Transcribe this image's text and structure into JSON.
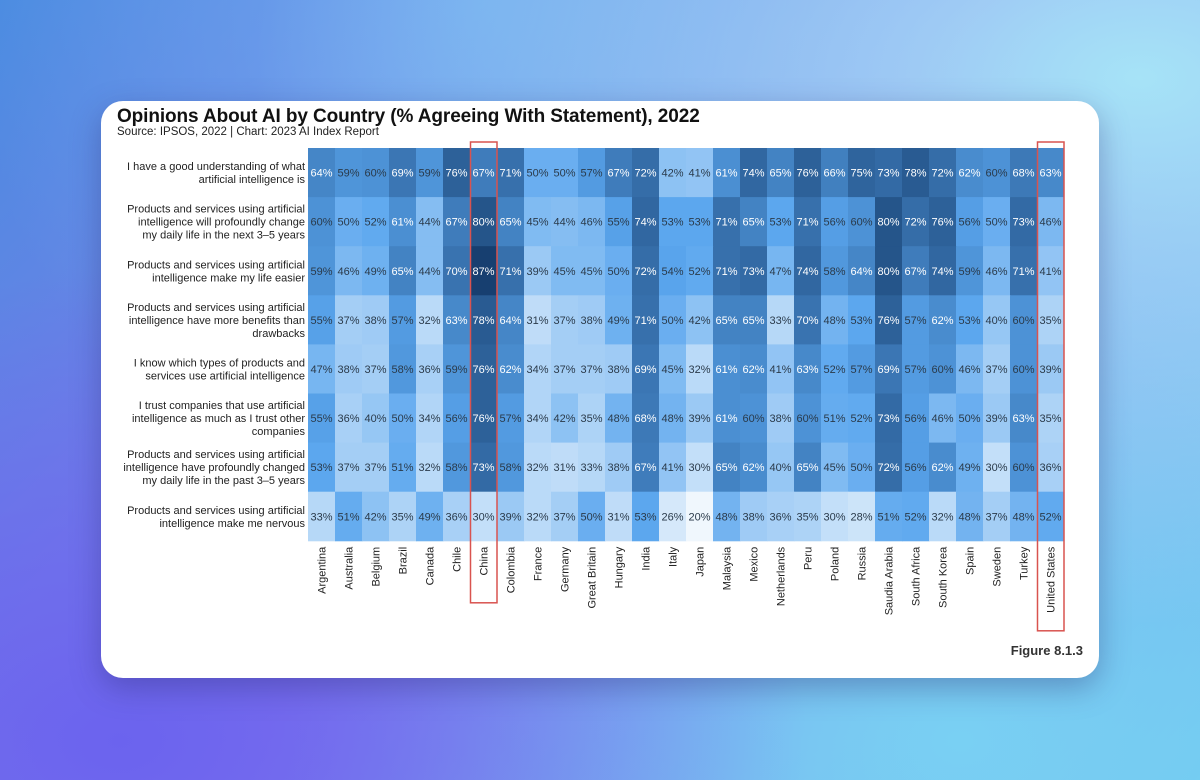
{
  "figure_label": "Figure 8.1.3",
  "highlight_color": "#d9534f",
  "highlighted_columns": [
    "China",
    "United States"
  ],
  "chart_data": {
    "type": "heatmap",
    "title": "Opinions About AI by Country (% Agreeing With Statement), 2022",
    "subtitle": "Source: IPSOS, 2022 | Chart: 2023 AI Index Report",
    "unit": "%",
    "color_scale": {
      "low": "#f0f7fd",
      "mid": "#5aa6ee",
      "high": "#173f70",
      "min": 20,
      "max": 87
    },
    "columns": [
      "Argentina",
      "Australia",
      "Belgium",
      "Brazil",
      "Canada",
      "Chile",
      "China",
      "Colombia",
      "France",
      "Germany",
      "Great Britain",
      "Hungary",
      "India",
      "Italy",
      "Japan",
      "Malaysia",
      "Mexico",
      "Netherlands",
      "Peru",
      "Poland",
      "Russia",
      "Saudia Arabia",
      "South Africa",
      "South Korea",
      "Spain",
      "Sweden",
      "Turkey",
      "United States"
    ],
    "rows": [
      {
        "label": [
          "I have a good understanding of what",
          "artificial intelligence is"
        ],
        "values": [
          64,
          59,
          60,
          69,
          59,
          76,
          67,
          71,
          50,
          50,
          57,
          67,
          72,
          42,
          41,
          61,
          74,
          65,
          76,
          66,
          75,
          73,
          78,
          72,
          62,
          60,
          68,
          63
        ]
      },
      {
        "label": [
          "Products and services using artificial",
          "intelligence will profoundly change",
          "my daily life in the next 3–5 years"
        ],
        "values": [
          60,
          50,
          52,
          61,
          44,
          67,
          80,
          65,
          45,
          44,
          46,
          55,
          74,
          53,
          53,
          71,
          65,
          53,
          71,
          56,
          60,
          80,
          72,
          76,
          56,
          50,
          73,
          46
        ]
      },
      {
        "label": [
          "Products and services using artificial",
          "intelligence make my life easier"
        ],
        "values": [
          59,
          46,
          49,
          65,
          44,
          70,
          87,
          71,
          39,
          45,
          45,
          50,
          72,
          54,
          52,
          71,
          73,
          47,
          74,
          58,
          64,
          80,
          67,
          74,
          59,
          46,
          71,
          41
        ]
      },
      {
        "label": [
          "Products and services using artificial",
          "intelligence have more benefits than",
          "drawbacks"
        ],
        "values": [
          55,
          37,
          38,
          57,
          32,
          63,
          78,
          64,
          31,
          37,
          38,
          49,
          71,
          50,
          42,
          65,
          65,
          33,
          70,
          48,
          53,
          76,
          57,
          62,
          53,
          40,
          60,
          35
        ]
      },
      {
        "label": [
          "I know which types of products and",
          "services use artificial intelligence"
        ],
        "values": [
          47,
          38,
          37,
          58,
          36,
          59,
          76,
          62,
          34,
          37,
          37,
          38,
          69,
          45,
          32,
          61,
          62,
          41,
          63,
          52,
          57,
          69,
          57,
          60,
          46,
          37,
          60,
          39
        ]
      },
      {
        "label": [
          "I trust companies that use artificial",
          "intelligence as much as I trust other",
          "companies"
        ],
        "values": [
          55,
          36,
          40,
          50,
          34,
          56,
          76,
          57,
          34,
          42,
          35,
          48,
          68,
          48,
          39,
          61,
          60,
          38,
          60,
          51,
          52,
          73,
          56,
          46,
          50,
          39,
          63,
          35
        ]
      },
      {
        "label": [
          "Products and services using artificial",
          "intelligence have profoundly changed",
          "my daily life in the past 3–5 years"
        ],
        "values": [
          53,
          37,
          37,
          51,
          32,
          58,
          73,
          58,
          32,
          31,
          33,
          38,
          67,
          41,
          30,
          65,
          62,
          40,
          65,
          45,
          50,
          72,
          56,
          62,
          49,
          30,
          60,
          36
        ]
      },
      {
        "label": [
          "Products and services using artificial",
          "intelligence make me nervous"
        ],
        "values": [
          33,
          51,
          42,
          35,
          49,
          36,
          30,
          39,
          32,
          37,
          50,
          31,
          53,
          26,
          20,
          48,
          38,
          36,
          35,
          30,
          28,
          51,
          52,
          32,
          48,
          37,
          48,
          52
        ]
      }
    ]
  }
}
